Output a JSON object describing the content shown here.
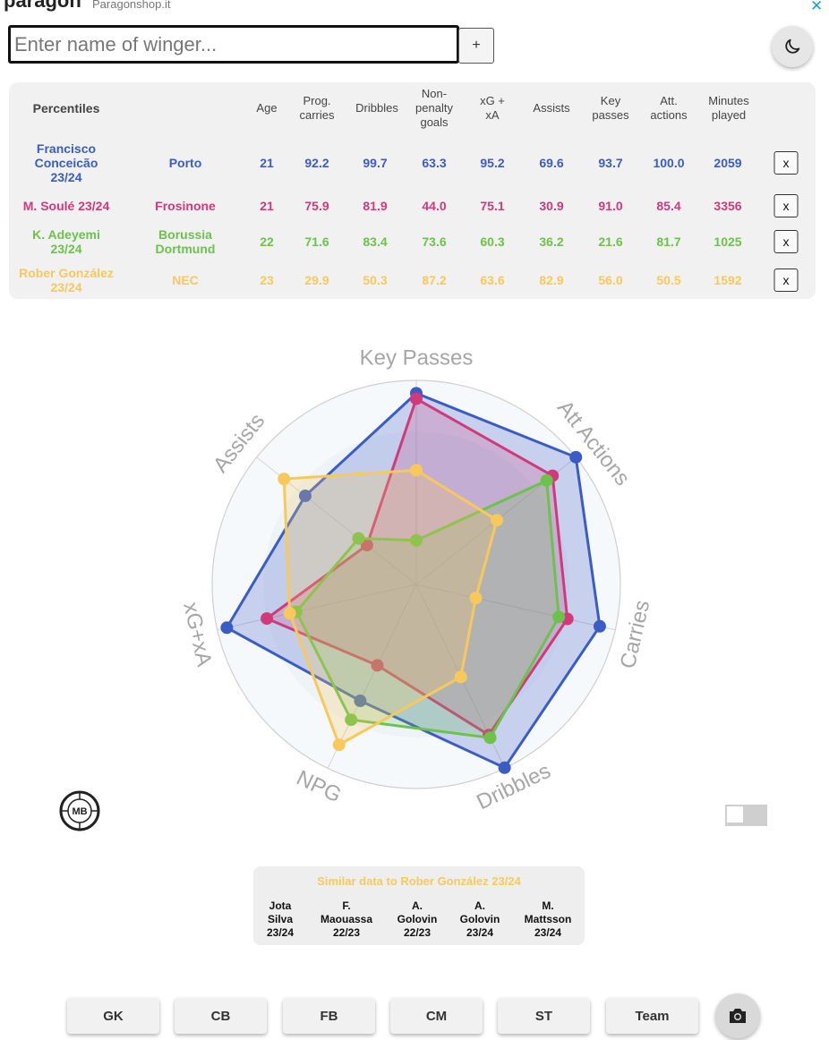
{
  "ad": {
    "site": "Paragonshop.it",
    "close": "✕",
    "logo": "paragon"
  },
  "search": {
    "placeholder": "Enter name of winger...",
    "value": "",
    "add_label": "+"
  },
  "theme_toggle_icon": "moon-icon",
  "colors": {
    "blue": "#3b5cc4",
    "pink": "#d03a7a",
    "green": "#6cc24a",
    "yellow": "#f7c95c"
  },
  "table": {
    "headers": {
      "percentiles": "Percentiles",
      "age": "Age",
      "prog_carries": "Prog.\ncarries",
      "dribbles": "Dribbles",
      "npg": "Non-\npenalty\ngoals",
      "xgxa": "xG +\nxA",
      "assists": "Assists",
      "key_passes": "Key\npasses",
      "att_actions": "Att.\nactions",
      "minutes": "Minutes\nplayed"
    },
    "remove_label": "x",
    "rows": [
      {
        "name": "Francisco\nConceicão\n23/24",
        "club": "Porto",
        "age": "21",
        "prog_carries": "92.2",
        "dribbles": "99.7",
        "npg": "63.3",
        "xgxa": "95.2",
        "assists": "69.6",
        "key_passes": "93.7",
        "att_actions": "100.0",
        "minutes": "2059"
      },
      {
        "name": "M. Soulé 23/24",
        "club": "Frosinone",
        "age": "21",
        "prog_carries": "75.9",
        "dribbles": "81.9",
        "npg": "44.0",
        "xgxa": "75.1",
        "assists": "30.9",
        "key_passes": "91.0",
        "att_actions": "85.4",
        "minutes": "3356"
      },
      {
        "name": "K. Adeyemi\n23/24",
        "club": "Borussia\nDortmund",
        "age": "22",
        "prog_carries": "71.6",
        "dribbles": "83.4",
        "npg": "73.6",
        "xgxa": "60.3",
        "assists": "36.2",
        "key_passes": "21.6",
        "att_actions": "81.7",
        "minutes": "1025"
      },
      {
        "name": "Rober González\n23/24",
        "club": "NEC",
        "age": "23",
        "prog_carries": "29.9",
        "dribbles": "50.3",
        "npg": "87.2",
        "xgxa": "63.6",
        "assists": "82.9",
        "key_passes": "56.0",
        "att_actions": "50.5",
        "minutes": "1592"
      }
    ]
  },
  "chart_data": {
    "type": "radar",
    "axes": [
      "Key Passes",
      "Att Actions",
      "Carries",
      "Dribbles",
      "NPG",
      "xG+xA",
      "Assists"
    ],
    "range": [
      0,
      100
    ],
    "series": [
      {
        "name": "Francisco Conceicão 23/24",
        "values": [
          93.7,
          100.0,
          92.2,
          99.7,
          63.3,
          95.2,
          69.6
        ]
      },
      {
        "name": "M. Soulé 23/24",
        "values": [
          91.0,
          85.4,
          75.9,
          81.9,
          44.0,
          75.1,
          30.9
        ]
      },
      {
        "name": "K. Adeyemi 23/24",
        "values": [
          21.6,
          81.7,
          71.6,
          83.4,
          73.6,
          60.3,
          36.2
        ]
      },
      {
        "name": "Rober González 23/24",
        "values": [
          56.0,
          50.5,
          29.9,
          50.3,
          87.2,
          63.6,
          82.9
        ]
      }
    ]
  },
  "logo_text": "MB",
  "similar": {
    "title": "Similar data to Rober González 23/24",
    "items": [
      "Jota\nSilva\n23/24",
      "F.\nMaouassa\n22/23",
      "A.\nGolovin\n22/23",
      "A.\nGolovin\n23/24",
      "M.\nMattsson\n23/24"
    ]
  },
  "nav": {
    "gk": "GK",
    "cb": "CB",
    "fb": "FB",
    "cm": "CM",
    "st": "ST",
    "team": "Team"
  },
  "camera_icon": "camera-icon"
}
